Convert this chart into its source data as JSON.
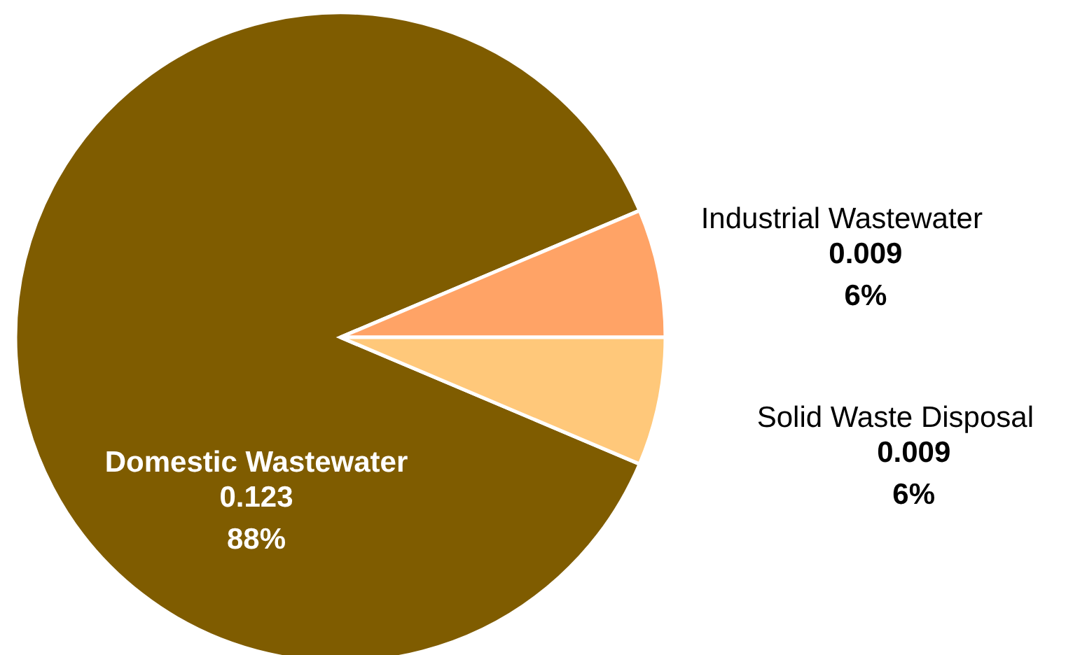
{
  "chart_data": {
    "type": "pie",
    "categories": [
      "Domestic Wastewater",
      "Industrial Wastewater",
      "Solid Waste Disposal"
    ],
    "values": [
      0.123,
      0.009,
      0.009
    ],
    "colors": [
      "#7f5c00",
      "#ffa366",
      "#ffc87a"
    ],
    "value_labels": [
      "0.123\n88%",
      "0.009\n6%",
      "0.009\n6%"
    ]
  }
}
